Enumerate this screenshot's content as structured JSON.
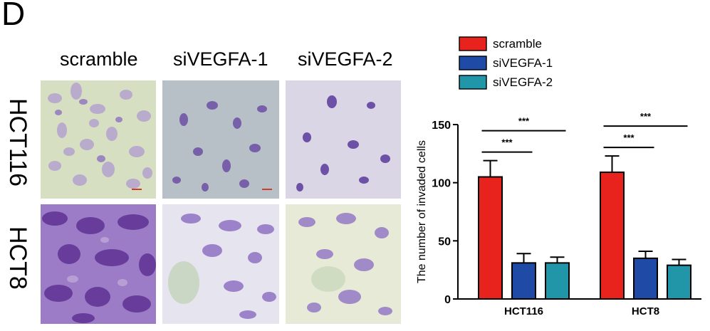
{
  "panel_label": "D",
  "micrograph_grid": {
    "columns": [
      "scramble",
      "siVEGFA-1",
      "siVEGFA-2"
    ],
    "rows": [
      "HCT116",
      "HCT8"
    ]
  },
  "chart_data": {
    "type": "bar",
    "title": "",
    "xlabel": "",
    "ylabel": "The number of invaded cells",
    "ylim": [
      0,
      150
    ],
    "yticks": [
      0,
      50,
      100,
      150
    ],
    "categories": [
      "HCT116",
      "HCT8"
    ],
    "series": [
      {
        "name": "scramble",
        "color": "#e8231d",
        "values": [
          105,
          109
        ],
        "errors": [
          14,
          14
        ]
      },
      {
        "name": "siVEGFA-1",
        "color": "#1f4aa5",
        "values": [
          31,
          35
        ],
        "errors": [
          8,
          6
        ]
      },
      {
        "name": "siVEGFA-2",
        "color": "#2196a8",
        "values": [
          31,
          29
        ],
        "errors": [
          5,
          5
        ]
      }
    ],
    "significance": [
      {
        "category": "HCT116",
        "from": "scramble",
        "to": "siVEGFA-1",
        "label": "***"
      },
      {
        "category": "HCT116",
        "from": "scramble",
        "to": "siVEGFA-2",
        "label": "***"
      },
      {
        "category": "HCT8",
        "from": "scramble",
        "to": "siVEGFA-1",
        "label": "***"
      },
      {
        "category": "HCT8",
        "from": "scramble",
        "to": "siVEGFA-2",
        "label": "***"
      }
    ],
    "legend_position": "top",
    "grid": false
  }
}
